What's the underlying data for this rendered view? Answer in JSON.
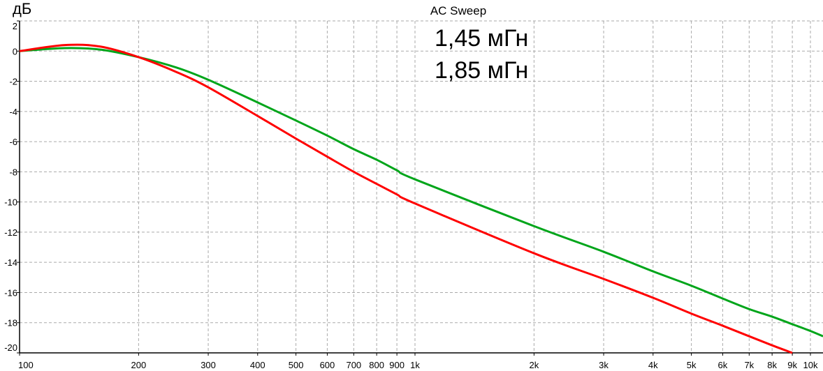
{
  "chart_data": {
    "type": "line",
    "title": "AC Sweep",
    "ylabel": "дБ",
    "xlabel": "",
    "xscale": "log",
    "xlim": [
      100,
      10760
    ],
    "ylim": [
      -20,
      2
    ],
    "grid": true,
    "yticks": [
      2,
      0,
      -2,
      -4,
      -6,
      -8,
      -10,
      -12,
      -14,
      -16,
      -18,
      -20
    ],
    "xticks": [
      {
        "v": 100,
        "label": "100"
      },
      {
        "v": 200,
        "label": "200"
      },
      {
        "v": 300,
        "label": "300"
      },
      {
        "v": 400,
        "label": "400"
      },
      {
        "v": 500,
        "label": "500"
      },
      {
        "v": 600,
        "label": "600"
      },
      {
        "v": 700,
        "label": "700"
      },
      {
        "v": 800,
        "label": "800"
      },
      {
        "v": 900,
        "label": "900"
      },
      {
        "v": 1000,
        "label": "1k"
      },
      {
        "v": 2000,
        "label": "2k"
      },
      {
        "v": 3000,
        "label": "3k"
      },
      {
        "v": 4000,
        "label": "4k"
      },
      {
        "v": 5000,
        "label": "5k"
      },
      {
        "v": 6000,
        "label": "6k"
      },
      {
        "v": 7000,
        "label": "7k"
      },
      {
        "v": 8000,
        "label": "8k"
      },
      {
        "v": 9000,
        "label": "9k"
      },
      {
        "v": 10000,
        "label": "10k"
      }
    ],
    "legend_placement": "top-center",
    "series": [
      {
        "name": "1,45 мГн",
        "color": "#00a51a",
        "x": [
          100,
          130,
          160,
          200,
          250,
          300,
          400,
          500,
          600,
          700,
          800,
          900,
          1000,
          2000,
          3000,
          4000,
          5000,
          6000,
          7000,
          8000,
          9000,
          10000,
          10760
        ],
        "y": [
          0,
          0.2,
          0.1,
          -0.4,
          -1.1,
          -1.9,
          -3.4,
          -4.6,
          -5.6,
          -6.5,
          -7.2,
          -7.9,
          -8.5,
          -11.6,
          -13.3,
          -14.6,
          -15.55,
          -16.4,
          -17.1,
          -17.6,
          -18.1,
          -18.55,
          -18.9
        ]
      },
      {
        "name": "1,85 мГн",
        "color": "#ff0000",
        "x": [
          100,
          130,
          160,
          200,
          250,
          300,
          400,
          500,
          600,
          700,
          800,
          900,
          1000,
          2000,
          3000,
          4000,
          5000,
          6000,
          7000,
          8000,
          9000
        ],
        "y": [
          0,
          0.4,
          0.3,
          -0.4,
          -1.4,
          -2.4,
          -4.3,
          -5.8,
          -7.0,
          -8.0,
          -8.8,
          -9.5,
          -10.1,
          -13.4,
          -15.1,
          -16.35,
          -17.4,
          -18.2,
          -18.9,
          -19.5,
          -20.0
        ]
      }
    ],
    "legend_colors": [
      "#00a51a",
      "#8b0a2a"
    ]
  }
}
